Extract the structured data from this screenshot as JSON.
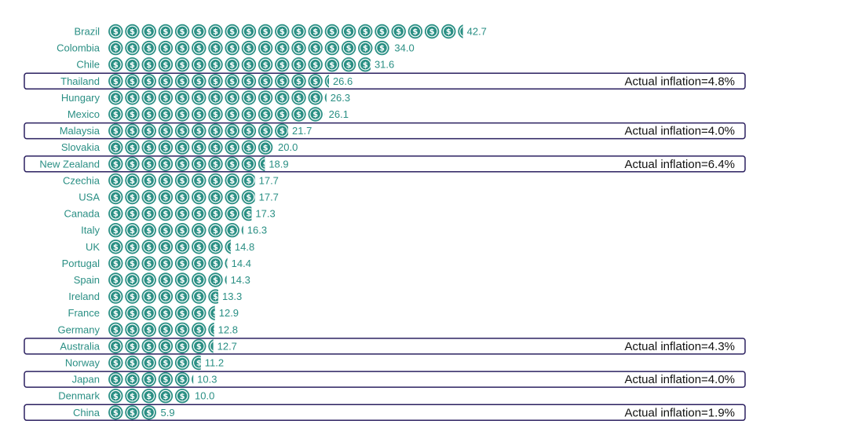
{
  "chart_data": {
    "type": "bar",
    "title": "",
    "xlabel": "",
    "ylabel": "",
    "xlim": [
      0,
      45
    ],
    "grid": false,
    "legend": "none",
    "icon": "dollar-coin-icon",
    "colors": {
      "bar": "#2a8f84",
      "label": "#2a8f84",
      "highlight_box": "#2b2060",
      "note": "#111111"
    },
    "categories": [
      "Brazil",
      "Colombia",
      "Chile",
      "Thailand",
      "Hungary",
      "Mexico",
      "Malaysia",
      "Slovakia",
      "New Zealand",
      "Czechia",
      "USA",
      "Canada",
      "Italy",
      "UK",
      "Portugal",
      "Spain",
      "Ireland",
      "France",
      "Germany",
      "Australia",
      "Norway",
      "Japan",
      "Denmark",
      "China"
    ],
    "values": [
      42.7,
      34.0,
      31.6,
      26.6,
      26.3,
      26.1,
      21.7,
      20.0,
      18.9,
      17.7,
      17.7,
      17.3,
      16.3,
      14.8,
      14.4,
      14.3,
      13.3,
      12.9,
      12.8,
      12.7,
      11.2,
      10.3,
      10.0,
      5.9
    ],
    "value_labels": [
      "42.7",
      "34.0",
      "31.6",
      "26.6",
      "26.3",
      "26.1",
      "21.7",
      "20.0",
      "18.9",
      "17.7",
      "17.7",
      "17.3",
      "16.3",
      "14.8",
      "14.4",
      "14.3",
      "13.3",
      "12.9",
      "12.8",
      "12.7",
      "11.2",
      "10.3",
      "10.0",
      "5.9"
    ],
    "highlights": [
      {
        "category": "Thailand",
        "text": "Actual inflation=4.8%"
      },
      {
        "category": "Malaysia",
        "text": "Actual inflation=4.0%"
      },
      {
        "category": "New Zealand",
        "text": "Actual inflation=6.4%"
      },
      {
        "category": "Australia",
        "text": "Actual inflation=4.3%"
      },
      {
        "category": "Japan",
        "text": "Actual inflation=4.0%"
      },
      {
        "category": "China",
        "text": "Actual inflation=1.9%"
      }
    ]
  }
}
